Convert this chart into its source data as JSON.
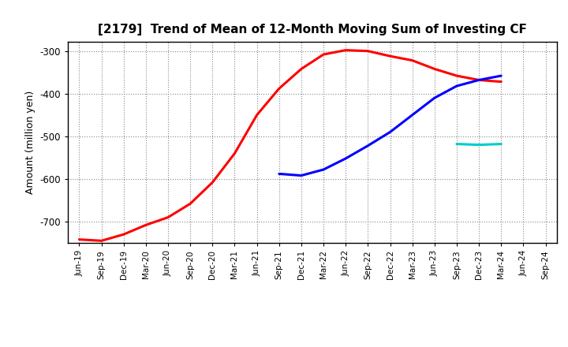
{
  "title": "[2179]  Trend of Mean of 12-Month Moving Sum of Investing CF",
  "ylabel": "Amount (million yen)",
  "ylim": [
    -750,
    -278
  ],
  "yticks": [
    -700,
    -600,
    -500,
    -400,
    -300
  ],
  "background_color": "#ffffff",
  "grid_color": "#888888",
  "series": {
    "3yr": {
      "color": "#ff0000",
      "x": [
        0,
        1,
        2,
        3,
        4,
        5,
        6,
        7,
        8,
        9,
        10,
        11,
        12,
        13,
        14,
        15,
        16,
        17,
        18,
        19
      ],
      "y": [
        -742,
        -745,
        -730,
        -708,
        -690,
        -658,
        -608,
        -540,
        -450,
        -388,
        -342,
        -308,
        -298,
        -300,
        -312,
        -322,
        -342,
        -358,
        -368,
        -372
      ]
    },
    "5yr": {
      "color": "#0000ff",
      "x": [
        9,
        10,
        11,
        12,
        13,
        14,
        15,
        16,
        17,
        18,
        19
      ],
      "y": [
        -588,
        -592,
        -578,
        -552,
        -522,
        -490,
        -450,
        -410,
        -382,
        -368,
        -358
      ]
    },
    "7yr": {
      "color": "#00cccc",
      "x": [
        17,
        18,
        19
      ],
      "y": [
        -518,
        -520,
        -518
      ]
    },
    "10yr": {
      "color": "#008000",
      "x": [],
      "y": []
    }
  },
  "xtick_labels": [
    "Jun-19",
    "Sep-19",
    "Dec-19",
    "Mar-20",
    "Jun-20",
    "Sep-20",
    "Dec-20",
    "Mar-21",
    "Jun-21",
    "Sep-21",
    "Dec-21",
    "Mar-22",
    "Jun-22",
    "Sep-22",
    "Dec-22",
    "Mar-23",
    "Jun-23",
    "Sep-23",
    "Dec-23",
    "Mar-24",
    "Jun-24",
    "Sep-24"
  ],
  "linewidth": 2.2
}
